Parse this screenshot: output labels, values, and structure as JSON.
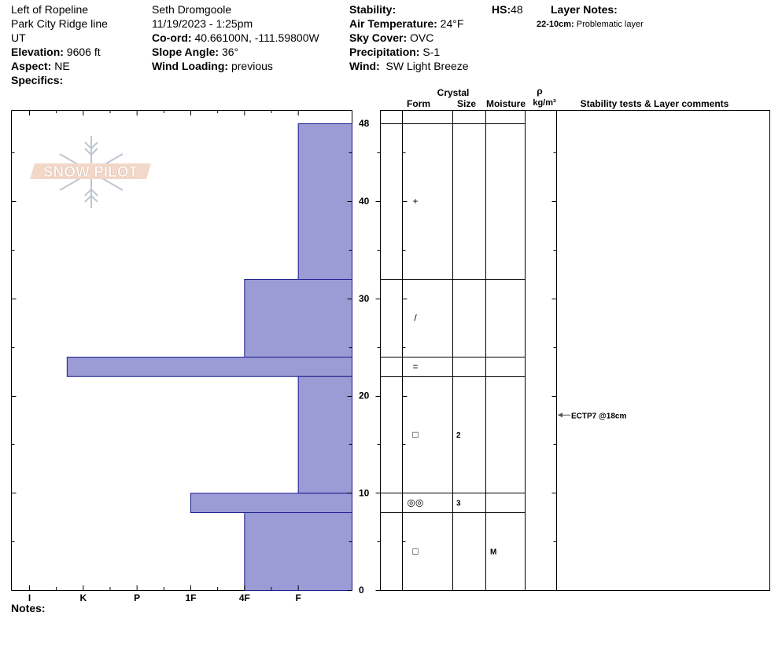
{
  "site": {
    "location": "Left of Ropeline",
    "range": "Park City Ridge line",
    "state": "UT",
    "elevation_label": "Elevation:",
    "elevation": "9606 ft",
    "aspect_label": "Aspect:",
    "aspect": "NE",
    "specifics_label": "Specifics:"
  },
  "observer": {
    "name": "Seth Dromgoole",
    "datetime": "11/19/2023 - 1:25pm",
    "coord_label": "Co-ord:",
    "coord": "40.66100N, -111.59800W",
    "slope_label": "Slope Angle:",
    "slope": "36°",
    "wind_loading_label": "Wind Loading:",
    "wind_loading": "previous"
  },
  "conditions": {
    "stability_label": "Stability:",
    "air_temp_label": "Air Temperature:",
    "air_temp": "24°F",
    "sky_label": "Sky Cover:",
    "sky": "OVC",
    "precip_label": "Precipitation:",
    "precip": "S-1",
    "wind_label": "Wind:",
    "wind": "SW Light Breeze"
  },
  "hs": {
    "label": "HS:",
    "value": "48"
  },
  "layer_notes": {
    "title": "Layer Notes:",
    "entries": [
      {
        "range": "22-10cm:",
        "text": "Problematic layer"
      }
    ]
  },
  "table_headers": {
    "crystal": "Crystal",
    "form": "Form",
    "size": "Size",
    "moisture": "Moisture",
    "rho": "ρ",
    "density_unit": "kg/m³",
    "stability": "Stability tests & Layer comments"
  },
  "notes_label": "Notes:",
  "logo_text": "SNOW PILOT",
  "colors": {
    "hardness_fill": "#9b9bd6",
    "hardness_stroke": "#1a1a8c"
  },
  "chart_data": {
    "type": "bar",
    "title": "",
    "ylabel": "",
    "ylim": [
      0,
      48
    ],
    "y_tick_labels": [
      "0",
      "10",
      "20",
      "30",
      "40",
      "48"
    ],
    "x_categories": [
      "I",
      "K",
      "P",
      "1F",
      "4F",
      "F"
    ],
    "layers": [
      {
        "top": 48,
        "bottom": 32,
        "hardness": "F",
        "form": "+",
        "size": "",
        "moisture": ""
      },
      {
        "top": 32,
        "bottom": 24,
        "hardness": "4F",
        "form": "/",
        "size": "",
        "moisture": ""
      },
      {
        "top": 24,
        "bottom": 22,
        "hardness": "K-",
        "form": "=",
        "size": "",
        "moisture": ""
      },
      {
        "top": 22,
        "bottom": 10,
        "hardness": "F",
        "form": "□",
        "size": "2",
        "moisture": ""
      },
      {
        "top": 10,
        "bottom": 8,
        "hardness": "1F",
        "form": "◎◎",
        "size": "3",
        "moisture": ""
      },
      {
        "top": 8,
        "bottom": 0,
        "hardness": "4F",
        "form": "□",
        "size": "",
        "moisture": "M"
      }
    ],
    "hardness_index": {
      "F": 1,
      "4F": 2,
      "1F": 3,
      "P": 4,
      "K": 5,
      "K-": 5.3,
      "I": 6
    },
    "tests": [
      {
        "depth": 18,
        "label": "ECTP7 @18cm"
      }
    ]
  }
}
